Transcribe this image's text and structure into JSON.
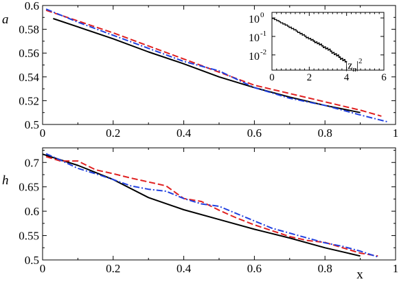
{
  "chart_data": [
    {
      "type": "line",
      "ylabel": "a",
      "xlim": [
        0,
        1
      ],
      "ylim": [
        0.5,
        0.6
      ],
      "xticks": [
        "0",
        "0.2",
        "0.4",
        "0.6",
        "0.8",
        "1"
      ],
      "yticks": [
        "0.5",
        "0.52",
        "0.54",
        "0.56",
        "0.58",
        "0.6"
      ],
      "series": [
        {
          "style": "solid",
          "color": "#000000",
          "x": [
            0.03,
            0.1,
            0.2,
            0.3,
            0.4,
            0.5,
            0.6,
            0.7,
            0.8,
            0.9
          ],
          "values": [
            0.589,
            0.582,
            0.572,
            0.561,
            0.551,
            0.54,
            0.531,
            0.523,
            0.516,
            0.51
          ]
        },
        {
          "style": "dashed",
          "color": "#e02020",
          "x": [
            0.01,
            0.1,
            0.2,
            0.3,
            0.4,
            0.5,
            0.6,
            0.7,
            0.8,
            0.9,
            0.96
          ],
          "values": [
            0.596,
            0.587,
            0.577,
            0.566,
            0.555,
            0.544,
            0.533,
            0.526,
            0.519,
            0.512,
            0.507
          ]
        },
        {
          "style": "dashdot",
          "color": "#2040e0",
          "x": [
            0.01,
            0.1,
            0.2,
            0.3,
            0.4,
            0.5,
            0.6,
            0.7,
            0.8,
            0.9,
            0.98
          ],
          "values": [
            0.597,
            0.586,
            0.575,
            0.564,
            0.553,
            0.545,
            0.531,
            0.522,
            0.516,
            0.508,
            0.502
          ]
        }
      ],
      "inset": {
        "type": "line",
        "xlabel": "|z_n|^2",
        "xlim": [
          0,
          6
        ],
        "ylog": true,
        "ylim": [
          0.0015,
          2
        ],
        "xticks": [
          "0",
          "2",
          "4",
          "6"
        ],
        "yticks": [
          {
            "value": 1,
            "base": "10",
            "exp": "0"
          },
          {
            "value": 0.1,
            "base": "10",
            "exp": "-1"
          },
          {
            "value": 0.01,
            "base": "10",
            "exp": "-2"
          }
        ],
        "x": [
          0,
          0.5,
          1,
          1.5,
          2,
          2.5,
          3,
          3.5,
          4
        ],
        "values": [
          1.0,
          0.55,
          0.3,
          0.15,
          0.075,
          0.04,
          0.02,
          0.009,
          0.004
        ]
      }
    },
    {
      "type": "line",
      "ylabel": "h",
      "xlabel": "x",
      "xlim": [
        0,
        1
      ],
      "ylim": [
        0.5,
        0.73
      ],
      "xticks": [
        "0",
        "0.2",
        "0.4",
        "0.6",
        "0.8",
        "1"
      ],
      "yticks": [
        "0.5",
        "0.55",
        "0.6",
        "0.65",
        "0.7"
      ],
      "series": [
        {
          "style": "solid",
          "color": "#000000",
          "x": [
            0.0,
            0.1,
            0.2,
            0.3,
            0.4,
            0.5,
            0.6,
            0.7,
            0.8,
            0.9
          ],
          "values": [
            0.717,
            0.694,
            0.665,
            0.628,
            0.603,
            0.583,
            0.563,
            0.545,
            0.525,
            0.508
          ]
        },
        {
          "style": "dashed",
          "color": "#e02020",
          "x": [
            0.01,
            0.05,
            0.1,
            0.15,
            0.2,
            0.25,
            0.3,
            0.35,
            0.4,
            0.45,
            0.5,
            0.55,
            0.6,
            0.65,
            0.7,
            0.75,
            0.8,
            0.85,
            0.9,
            0.95
          ],
          "values": [
            0.712,
            0.703,
            0.703,
            0.685,
            0.677,
            0.668,
            0.66,
            0.652,
            0.626,
            0.62,
            0.602,
            0.586,
            0.572,
            0.56,
            0.548,
            0.54,
            0.536,
            0.525,
            0.514,
            0.508
          ]
        },
        {
          "style": "dashdot",
          "color": "#2040e0",
          "x": [
            0.01,
            0.05,
            0.1,
            0.15,
            0.2,
            0.25,
            0.3,
            0.35,
            0.4,
            0.45,
            0.5,
            0.55,
            0.6,
            0.65,
            0.7,
            0.75,
            0.8,
            0.85,
            0.9,
            0.95
          ],
          "values": [
            0.718,
            0.705,
            0.688,
            0.677,
            0.665,
            0.652,
            0.645,
            0.641,
            0.626,
            0.615,
            0.61,
            0.595,
            0.58,
            0.565,
            0.555,
            0.545,
            0.535,
            0.528,
            0.518,
            0.506
          ]
        }
      ]
    }
  ]
}
